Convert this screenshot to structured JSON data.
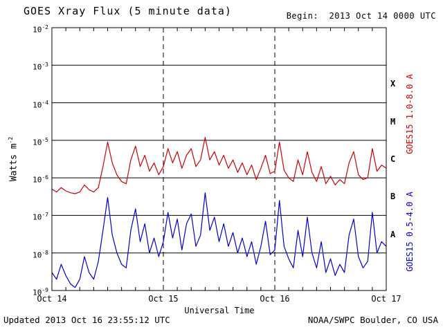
{
  "header": {
    "title": "GOES Xray Flux (5 minute data)",
    "begin_label": "Begin:  2013 Oct 14 0000 UTC"
  },
  "labels": {
    "y_base": "Watts m",
    "y_exp": "-2"
  },
  "footer": {
    "updated": "Updated 2013 Oct 16 23:55:12 UTC",
    "credit": "NOAA/SWPC Boulder, CO USA"
  },
  "chart_data": {
    "type": "line",
    "title": "GOES Xray Flux (5 minute data)",
    "xlabel": "Universal Time",
    "ylabel": "Watts m^-2",
    "y_scale": "log",
    "ylim": [
      1e-09,
      0.01
    ],
    "y_tick_exponents": [
      -2,
      -3,
      -4,
      -5,
      -6,
      -7,
      -8,
      -9
    ],
    "flare_class_labels": [
      "X",
      "M",
      "C",
      "B",
      "A"
    ],
    "x_tick_labels": [
      "Oct 14",
      "Oct 15",
      "Oct 16",
      "Oct 17"
    ],
    "x_tick_hours": [
      0,
      24,
      48,
      72
    ],
    "x_start_hour": 0,
    "x_step_hours": 1,
    "x_unit": "hours since 2013 Oct 14 0000 UTC",
    "grid": "horizontal solid line each decade; vertical dashed line at day boundaries; minor ticks every 3 hours",
    "legend_position": "right, rotated",
    "series": [
      {
        "name": "GOES15 1.0-8.0 A",
        "color": "#cc0000",
        "values": [
          5e-07,
          4.2e-07,
          5.5e-07,
          4.5e-07,
          4e-07,
          3.8e-07,
          4.2e-07,
          6.5e-07,
          4.8e-07,
          4.2e-07,
          5.5e-07,
          2e-06,
          9e-06,
          2.5e-06,
          1.2e-06,
          8e-07,
          7e-07,
          3e-06,
          7e-06,
          2e-06,
          4e-06,
          1.5e-06,
          2.5e-06,
          1.2e-06,
          2e-06,
          6e-06,
          2.5e-06,
          5e-06,
          1.8e-06,
          4e-06,
          6e-06,
          2e-06,
          3e-06,
          1.2e-05,
          3e-06,
          5e-06,
          2.2e-06,
          4e-06,
          1.8e-06,
          3e-06,
          1.4e-06,
          2.5e-06,
          1.2e-06,
          2.2e-06,
          9e-07,
          1.8e-06,
          4e-06,
          1.3e-06,
          1.5e-06,
          9e-06,
          1.6e-06,
          1e-06,
          8e-07,
          3e-06,
          1.2e-06,
          5e-06,
          1.4e-06,
          8e-07,
          2e-06,
          7e-07,
          1.1e-06,
          6.5e-07,
          9e-07,
          7e-07,
          2.5e-06,
          5e-06,
          1.2e-06,
          9e-07,
          1e-06,
          6e-06,
          1.5e-06,
          2.2e-06,
          1.8e-06
        ]
      },
      {
        "name": "GOES15 0.5-4.0 A",
        "color": "#0000cc",
        "values": [
          3e-09,
          2e-09,
          5e-09,
          2.5e-09,
          1.5e-09,
          1.2e-09,
          2e-09,
          8e-09,
          3e-09,
          2e-09,
          6e-09,
          4e-08,
          3e-07,
          3e-08,
          1e-08,
          5e-09,
          4e-09,
          4e-08,
          1.5e-07,
          2e-08,
          6e-08,
          1e-08,
          2.5e-08,
          8e-09,
          2e-08,
          1.2e-07,
          2.5e-08,
          8e-08,
          1.2e-08,
          6e-08,
          1.1e-07,
          1.5e-08,
          3e-08,
          4e-07,
          4e-08,
          9e-08,
          2e-08,
          6e-08,
          1.5e-08,
          3.5e-08,
          1e-08,
          2.5e-08,
          8e-09,
          2e-08,
          5e-09,
          1.5e-08,
          7e-08,
          9e-09,
          1.2e-08,
          2.5e-07,
          1.5e-08,
          7e-09,
          4e-09,
          4e-08,
          8e-09,
          9e-08,
          1e-08,
          4e-09,
          2e-08,
          3e-09,
          7e-09,
          2.5e-09,
          5e-09,
          3e-09,
          3e-08,
          8e-08,
          8e-09,
          4e-09,
          6e-09,
          1.2e-07,
          1e-08,
          2e-08,
          1.5e-08
        ]
      }
    ]
  }
}
